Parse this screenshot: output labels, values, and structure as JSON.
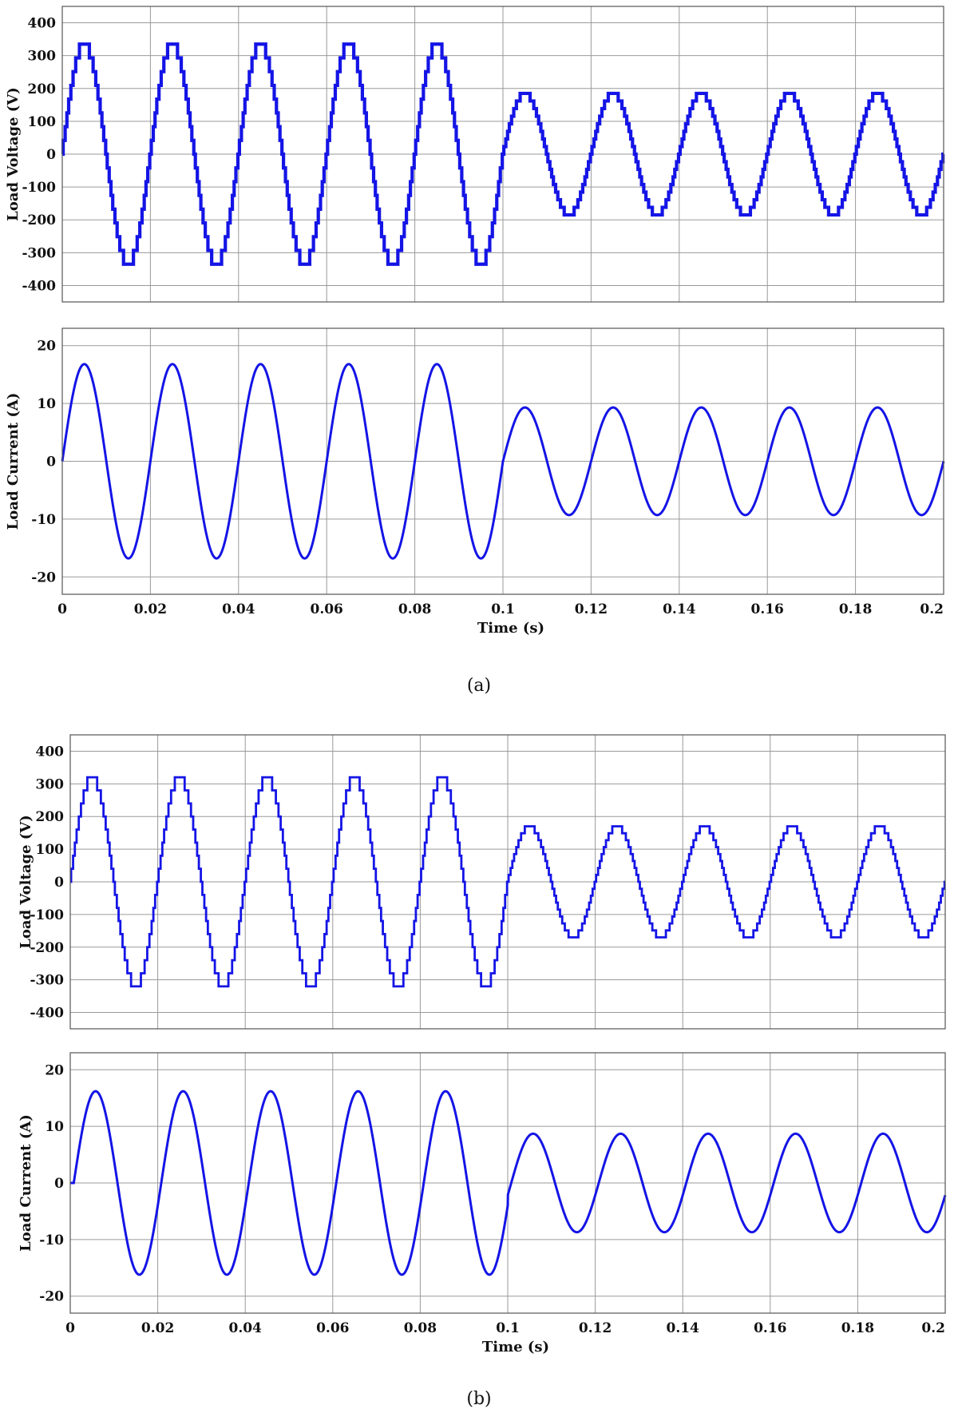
{
  "chart_data": [
    {
      "type": "line",
      "panel": "(a)",
      "ylabel": "Load Voltage (V)",
      "xlabel": "",
      "xlim": [
        0,
        0.2
      ],
      "ylim": [
        -450,
        450
      ],
      "yticks": [
        400,
        300,
        200,
        100,
        0,
        -100,
        -200,
        -300,
        -400
      ],
      "xticks": [
        "0",
        "0.02",
        "0.04",
        "0.06",
        "0.08",
        "0.1",
        "0.12",
        "0.14",
        "0.16",
        "0.18",
        "0.2"
      ],
      "grid": true,
      "frequency_hz": 50,
      "segments": [
        {
          "x_start": 0,
          "x_end": 0.1,
          "amplitude": 335
        },
        {
          "x_start": 0.1,
          "x_end": 0.2,
          "amplitude": 185
        }
      ],
      "waveform": "staircase sine",
      "step_levels": 9,
      "series": [
        {
          "values": [
            [
              0,
              0
            ],
            [
              0.005,
              335
            ],
            [
              0.015,
              -335
            ],
            [
              0.025,
              335
            ],
            [
              0.035,
              -335
            ],
            [
              0.045,
              335
            ],
            [
              0.055,
              -335
            ],
            [
              0.065,
              335
            ],
            [
              0.075,
              -335
            ],
            [
              0.085,
              335
            ],
            [
              0.095,
              -335
            ],
            [
              0.1,
              0
            ],
            [
              0.105,
              185
            ],
            [
              0.115,
              -185
            ],
            [
              0.125,
              185
            ],
            [
              0.135,
              -185
            ],
            [
              0.145,
              185
            ],
            [
              0.155,
              -185
            ],
            [
              0.165,
              185
            ],
            [
              0.175,
              -185
            ],
            [
              0.185,
              185
            ],
            [
              0.195,
              -185
            ],
            [
              0.2,
              0
            ]
          ]
        }
      ]
    },
    {
      "type": "line",
      "panel": "(a)",
      "ylabel": "Load Current (A)",
      "xlabel": "Time (s)",
      "xlim": [
        0,
        0.2
      ],
      "ylim": [
        -23,
        23
      ],
      "yticks": [
        20,
        10,
        0,
        -10,
        -20
      ],
      "xticks": [
        "0",
        "0.02",
        "0.04",
        "0.06",
        "0.08",
        "0.1",
        "0.12",
        "0.14",
        "0.16",
        "0.18",
        "0.2"
      ],
      "grid": true,
      "frequency_hz": 50,
      "segments": [
        {
          "x_start": 0,
          "x_end": 0.1,
          "amplitude": 16.8
        },
        {
          "x_start": 0.1,
          "x_end": 0.2,
          "amplitude": 9.3
        }
      ],
      "waveform": "sine",
      "series": [
        {
          "values": [
            [
              0,
              0
            ],
            [
              0.005,
              16.8
            ],
            [
              0.015,
              -16.8
            ],
            [
              0.025,
              16.8
            ],
            [
              0.035,
              -16.8
            ],
            [
              0.045,
              16.8
            ],
            [
              0.055,
              -16.8
            ],
            [
              0.065,
              16.8
            ],
            [
              0.075,
              -16.8
            ],
            [
              0.085,
              16.8
            ],
            [
              0.095,
              -16.8
            ],
            [
              0.1,
              0
            ],
            [
              0.105,
              9.3
            ],
            [
              0.115,
              -9.3
            ],
            [
              0.125,
              9.3
            ],
            [
              0.135,
              -9.3
            ],
            [
              0.145,
              9.3
            ],
            [
              0.155,
              -9.3
            ],
            [
              0.165,
              9.3
            ],
            [
              0.175,
              -9.3
            ],
            [
              0.185,
              9.3
            ],
            [
              0.195,
              -9.3
            ],
            [
              0.2,
              0
            ]
          ]
        }
      ]
    },
    {
      "type": "line",
      "panel": "(b)",
      "ylabel": "Load Voltage (V)",
      "xlabel": "",
      "xlim": [
        0,
        0.2
      ],
      "ylim": [
        -450,
        450
      ],
      "yticks": [
        400,
        300,
        200,
        100,
        0,
        -100,
        -200,
        -300,
        -400
      ],
      "xticks": [
        "0",
        "0.02",
        "0.04",
        "0.06",
        "0.08",
        "0.1",
        "0.12",
        "0.14",
        "0.16",
        "0.18",
        "0.2"
      ],
      "grid": true,
      "frequency_hz": 50,
      "segments": [
        {
          "x_start": 0,
          "x_end": 0.1,
          "amplitude": 320
        },
        {
          "x_start": 0.1,
          "x_end": 0.2,
          "amplitude": 170
        }
      ],
      "waveform": "staircase sine",
      "step_levels": 9,
      "series": [
        {
          "values": [
            [
              0,
              0
            ],
            [
              0.005,
              320
            ],
            [
              0.015,
              -320
            ],
            [
              0.025,
              320
            ],
            [
              0.035,
              -320
            ],
            [
              0.045,
              320
            ],
            [
              0.055,
              -320
            ],
            [
              0.065,
              320
            ],
            [
              0.075,
              -320
            ],
            [
              0.085,
              320
            ],
            [
              0.095,
              -320
            ],
            [
              0.1,
              0
            ],
            [
              0.105,
              170
            ],
            [
              0.115,
              -170
            ],
            [
              0.125,
              170
            ],
            [
              0.135,
              -170
            ],
            [
              0.145,
              170
            ],
            [
              0.155,
              -170
            ],
            [
              0.165,
              170
            ],
            [
              0.175,
              -170
            ],
            [
              0.185,
              170
            ],
            [
              0.195,
              -170
            ],
            [
              0.2,
              0
            ]
          ]
        }
      ]
    },
    {
      "type": "line",
      "panel": "(b)",
      "ylabel": "Load Current (A)",
      "xlabel": "Time (s)",
      "xlim": [
        0,
        0.2
      ],
      "ylim": [
        -23,
        23
      ],
      "yticks": [
        20,
        10,
        0,
        -10,
        -20
      ],
      "xticks": [
        "0",
        "0.02",
        "0.04",
        "0.06",
        "0.08",
        "0.1",
        "0.12",
        "0.14",
        "0.16",
        "0.18",
        "0.2"
      ],
      "grid": true,
      "frequency_hz": 50,
      "phase_lag_s": 0.0008,
      "segments": [
        {
          "x_start": 0,
          "x_end": 0.1,
          "amplitude": 16.2
        },
        {
          "x_start": 0.1,
          "x_end": 0.2,
          "amplitude": 8.7
        }
      ],
      "waveform": "sine",
      "series": [
        {
          "values": [
            [
              0,
              0
            ],
            [
              0.0058,
              16.2
            ],
            [
              0.0158,
              -16.2
            ],
            [
              0.0258,
              16.2
            ],
            [
              0.0358,
              -16.2
            ],
            [
              0.0458,
              16.2
            ],
            [
              0.0558,
              -16.2
            ],
            [
              0.0658,
              16.2
            ],
            [
              0.0758,
              -16.2
            ],
            [
              0.0858,
              16.2
            ],
            [
              0.0958,
              -16.2
            ],
            [
              0.1058,
              8.7
            ],
            [
              0.1158,
              -8.7
            ],
            [
              0.1258,
              8.7
            ],
            [
              0.1358,
              -8.7
            ],
            [
              0.1458,
              8.7
            ],
            [
              0.1558,
              -8.7
            ],
            [
              0.1658,
              8.7
            ],
            [
              0.1758,
              -8.7
            ],
            [
              0.1858,
              8.7
            ],
            [
              0.1958,
              -8.7
            ],
            [
              0.2,
              -2.3
            ]
          ]
        }
      ]
    }
  ],
  "captions": [
    "(a)",
    "(b)"
  ],
  "style": {
    "trace_color": "#1414e6",
    "grid_color": "#9a9a9a"
  }
}
